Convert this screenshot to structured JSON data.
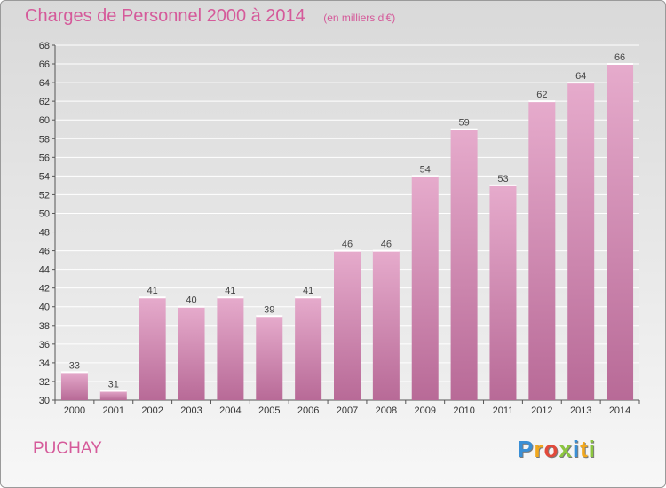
{
  "title": "Charges de Personnel 2000 à 2014",
  "subtitle": "(en milliers d'€)",
  "commune": "PUCHAY",
  "logo_text": "Proxiti",
  "chart_data": {
    "type": "bar",
    "title": "Charges de Personnel 2000 à 2014",
    "subtitle": "(en milliers d'€)",
    "xlabel": "",
    "ylabel": "",
    "categories": [
      "2000",
      "2001",
      "2002",
      "2003",
      "2004",
      "2005",
      "2006",
      "2007",
      "2008",
      "2009",
      "2010",
      "2011",
      "2012",
      "2013",
      "2014"
    ],
    "values": [
      33,
      31,
      41,
      40,
      41,
      39,
      41,
      46,
      46,
      54,
      59,
      53,
      62,
      64,
      66
    ],
    "ylim": [
      30,
      68
    ],
    "ytick_step": 2,
    "grid": true,
    "colors": {
      "bar": "#d48ab4",
      "bar_light": "#e6abcc",
      "title": "#d55a9a",
      "grid": "#ffffff"
    }
  }
}
